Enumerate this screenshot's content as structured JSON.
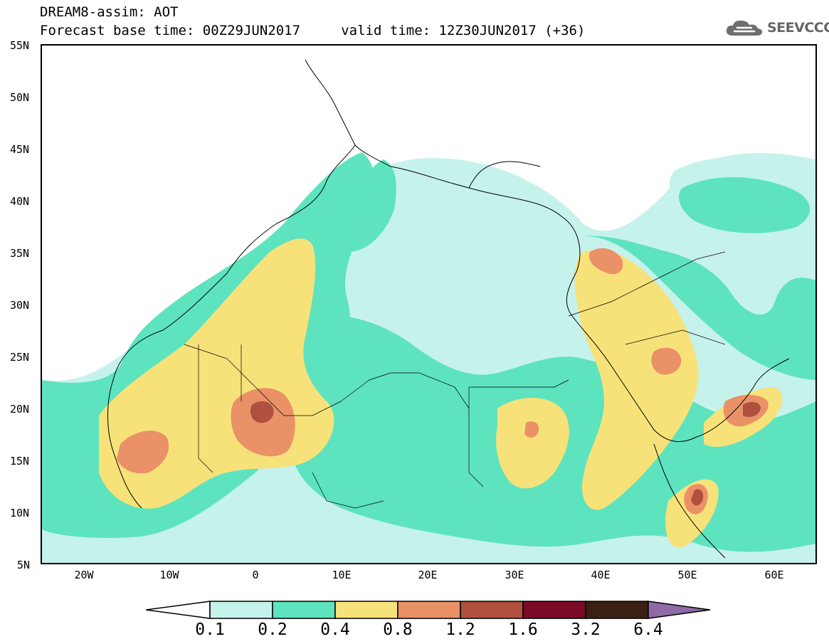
{
  "header": {
    "title": "DREAM8-assim: AOT",
    "forecast_line": "Forecast base time: 00Z29JUN2017     valid time: 12Z30JUN2017 (+36)"
  },
  "logo": {
    "text": "SEEVCCC",
    "icon": "cloud-icon"
  },
  "map": {
    "latitude_labels": [
      "55N",
      "50N",
      "45N",
      "40N",
      "35N",
      "30N",
      "25N",
      "20N",
      "15N",
      "10N",
      "5N"
    ],
    "longitude_labels": [
      "20W",
      "10W",
      "0",
      "10E",
      "20E",
      "30E",
      "40E",
      "50E",
      "60E"
    ],
    "field": "AOT",
    "extent": {
      "lon_min": -25,
      "lon_max": 65,
      "lat_min": 5,
      "lat_max": 55
    }
  },
  "colorbar": {
    "labels": [
      "0.1",
      "0.2",
      "0.4",
      "0.8",
      "1.2",
      "1.6",
      "3.2",
      "6.4"
    ],
    "colors": [
      "#ffffff",
      "#c6f2ec",
      "#5ee3bf",
      "#f7e27a",
      "#ea9167",
      "#b0503e",
      "#7a0a26",
      "#3a2012",
      "#8e6aa6"
    ]
  }
}
